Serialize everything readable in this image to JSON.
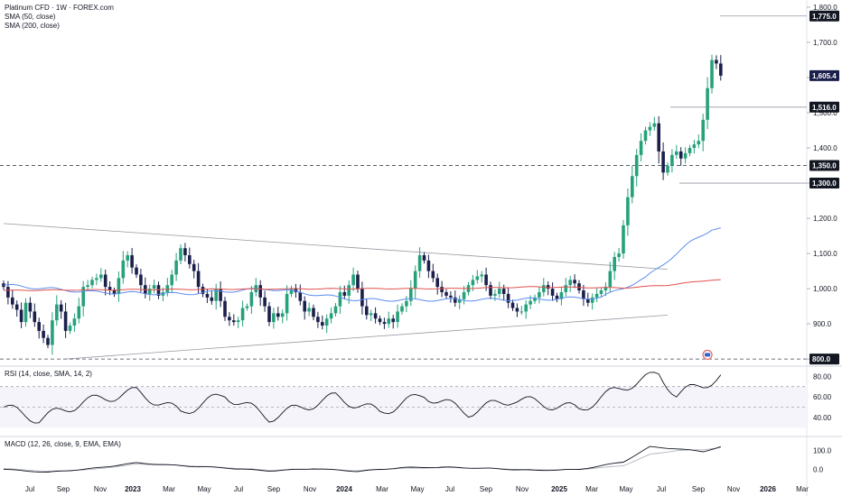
{
  "header": {
    "title": "Platinum CFD · 1W · FOREX.com",
    "studies": [
      "SMA (50, close)",
      "SMA (200, close)"
    ]
  },
  "rsi_panel": {
    "label": "RSI (14, close, SMA, 14, 2)",
    "ticks": [
      "80.00",
      "60.00",
      "40.00"
    ]
  },
  "macd_panel": {
    "label": "MACD (12, 26, close, 9, EMA, EMA)",
    "ticks": [
      "100.0",
      "0.0"
    ]
  },
  "colors": {
    "up": "#26a17b",
    "down": "#1b1f4b",
    "sma50": "#5b8def",
    "sma200": "#e0504f",
    "grid": "#f0f3fa",
    "axis_text": "#131722"
  },
  "chart_data": {
    "type": "candlestick",
    "x_labels": [
      "Jul",
      "Sep",
      "Nov",
      "2023",
      "Mar",
      "May",
      "Jul",
      "Sep",
      "Nov",
      "2024",
      "Mar",
      "May",
      "Jul",
      "Sep",
      "Nov",
      "2025",
      "Mar",
      "May",
      "Jul",
      "Sep",
      "Nov",
      "2026",
      "Mar"
    ],
    "y_ticks": [
      "1,800.0",
      "1,700.0",
      "1,600.0",
      "1,500.0",
      "1,400.0",
      "1,300.0",
      "1,200.0",
      "1,100.0",
      "1,000.0",
      "900.0",
      "800.0"
    ],
    "y_range": [
      790,
      1800
    ],
    "price_labels": [
      {
        "value": 1775.0,
        "text": "1,775.0",
        "line": "solid"
      },
      {
        "value": 1605.4,
        "text": "1,605.4",
        "line": "none"
      },
      {
        "value": 1516.0,
        "text": "1,516.0",
        "line": "solid"
      },
      {
        "value": 1350.0,
        "text": "1,350.0",
        "line": "dashed"
      },
      {
        "value": 1300.0,
        "text": "1,300.0",
        "line": "solid"
      },
      {
        "value": 800.0,
        "text": "800.0",
        "line": "dashed"
      }
    ],
    "closes": [
      1005,
      975,
      955,
      940,
      905,
      960,
      935,
      905,
      880,
      860,
      840,
      910,
      955,
      935,
      880,
      895,
      915,
      950,
      1005,
      1010,
      1025,
      1030,
      1040,
      1005,
      995,
      985,
      1030,
      1080,
      1095,
      1060,
      1040,
      1010,
      985,
      1000,
      1010,
      980,
      990,
      1010,
      1040,
      1080,
      1115,
      1095,
      1070,
      1050,
      1005,
      985,
      975,
      965,
      1000,
      965,
      920,
      910,
      905,
      910,
      945,
      950,
      990,
      1010,
      975,
      950,
      905,
      930,
      920,
      930,
      985,
      1000,
      990,
      965,
      935,
      945,
      920,
      905,
      895,
      915,
      930,
      950,
      990,
      980,
      1010,
      1040,
      1000,
      950,
      925,
      930,
      915,
      905,
      900,
      915,
      905,
      935,
      950,
      965,
      1000,
      1050,
      1095,
      1080,
      1050,
      1030,
      1005,
      990,
      980,
      975,
      960,
      970,
      990,
      1010,
      1025,
      1035,
      1040,
      1010,
      980,
      985,
      1000,
      985,
      960,
      945,
      935,
      935,
      955,
      965,
      975,
      990,
      1010,
      1000,
      980,
      970,
      990,
      1010,
      1025,
      1015,
      995,
      970,
      960,
      975,
      985,
      995,
      1005,
      1050,
      1090,
      1100,
      1180,
      1260,
      1320,
      1380,
      1420,
      1450,
      1460,
      1470,
      1390,
      1330,
      1350,
      1380,
      1390,
      1370,
      1385,
      1400,
      1410,
      1420,
      1480,
      1570,
      1650,
      1640,
      1605.4
    ],
    "volatility": 18,
    "sma50_anchors": [
      [
        0,
        1010
      ],
      [
        20,
        990
      ],
      [
        40,
        985
      ],
      [
        60,
        1000
      ],
      [
        80,
        968
      ],
      [
        100,
        968
      ],
      [
        120,
        970
      ],
      [
        135,
        975
      ],
      [
        145,
        1030
      ],
      [
        150,
        1080
      ],
      [
        155,
        1130
      ],
      [
        160,
        1170
      ]
    ],
    "sma200_anchors": [
      [
        0,
        995
      ],
      [
        40,
        998
      ],
      [
        80,
        1000
      ],
      [
        100,
        1000
      ],
      [
        120,
        1005
      ],
      [
        140,
        1002
      ],
      [
        150,
        1010
      ],
      [
        160,
        1025
      ]
    ],
    "trendlines": [
      {
        "from": [
          0,
          1185
        ],
        "to": [
          150,
          1055
        ]
      },
      {
        "from": [
          14,
          800
        ],
        "to": [
          150,
          925
        ]
      }
    ],
    "rsi": {
      "range": [
        25,
        90
      ],
      "guides": [
        70,
        50
      ],
      "anchors": [
        [
          0,
          50
        ],
        [
          8,
          38
        ],
        [
          18,
          55
        ],
        [
          30,
          65
        ],
        [
          40,
          45
        ],
        [
          50,
          62
        ],
        [
          60,
          40
        ],
        [
          75,
          60
        ],
        [
          85,
          45
        ],
        [
          95,
          62
        ],
        [
          105,
          45
        ],
        [
          115,
          58
        ],
        [
          130,
          48
        ],
        [
          140,
          70
        ],
        [
          148,
          82
        ],
        [
          152,
          62
        ],
        [
          158,
          72
        ],
        [
          162,
          80
        ],
        [
          165,
          76
        ]
      ]
    },
    "macd": {
      "range": [
        -45,
        175
      ],
      "anchors_macd": [
        [
          0,
          0
        ],
        [
          10,
          -15
        ],
        [
          20,
          5
        ],
        [
          30,
          35
        ],
        [
          40,
          20
        ],
        [
          50,
          8
        ],
        [
          60,
          -8
        ],
        [
          70,
          5
        ],
        [
          80,
          -10
        ],
        [
          90,
          10
        ],
        [
          100,
          12
        ],
        [
          110,
          5
        ],
        [
          120,
          -5
        ],
        [
          130,
          0
        ],
        [
          140,
          40
        ],
        [
          146,
          120
        ],
        [
          152,
          110
        ],
        [
          158,
          95
        ],
        [
          165,
          140
        ]
      ],
      "anchors_signal": [
        [
          0,
          5
        ],
        [
          10,
          -10
        ],
        [
          20,
          0
        ],
        [
          30,
          28
        ],
        [
          40,
          22
        ],
        [
          50,
          10
        ],
        [
          60,
          -4
        ],
        [
          70,
          2
        ],
        [
          80,
          -6
        ],
        [
          90,
          6
        ],
        [
          100,
          10
        ],
        [
          110,
          6
        ],
        [
          120,
          -2
        ],
        [
          130,
          0
        ],
        [
          140,
          20
        ],
        [
          146,
          80
        ],
        [
          152,
          100
        ],
        [
          158,
          105
        ],
        [
          165,
          125
        ]
      ]
    }
  }
}
